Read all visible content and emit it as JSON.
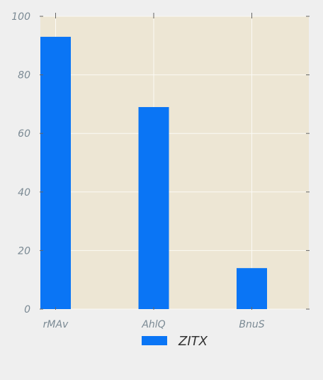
{
  "chart_data": {
    "type": "bar",
    "categories": [
      "rMAv",
      "AhlQ",
      "BnuS"
    ],
    "series": [
      {
        "name": "ZITX",
        "values": [
          93,
          69,
          14
        ]
      }
    ],
    "ylim": [
      0,
      100
    ],
    "yticks": [
      0,
      20,
      40,
      60,
      80,
      100
    ],
    "grid": true,
    "legend_position": "bottom-center",
    "colors": {
      "bar": "#0a75f5",
      "plot_bg": "#ede6d4",
      "grid": "#fbfaf5",
      "tick_text": "#7b8a94",
      "legend_text": "#333333",
      "page_bg": "#efefef"
    }
  }
}
